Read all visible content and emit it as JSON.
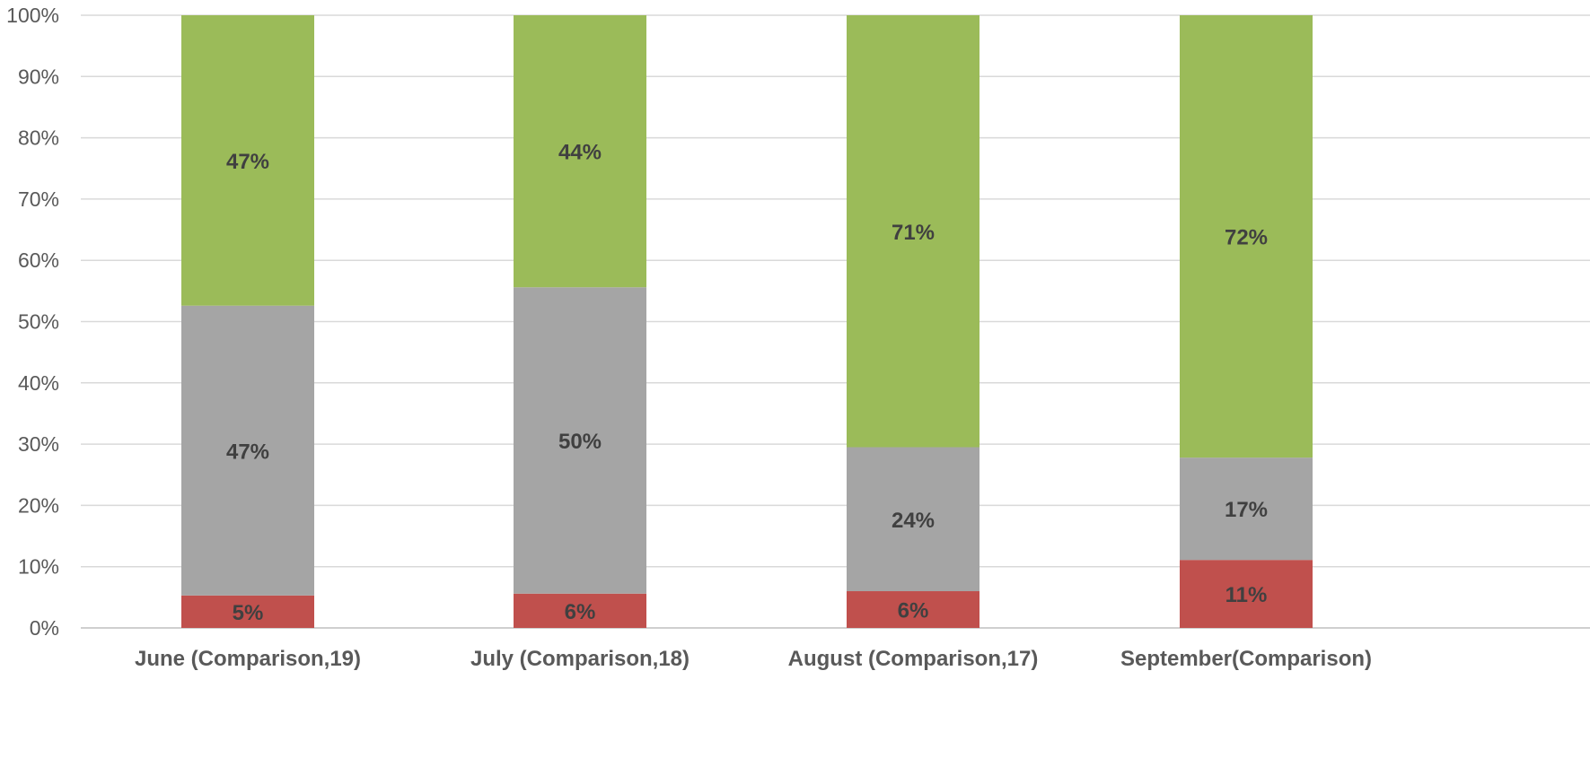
{
  "chart_data": {
    "type": "bar",
    "stacked": true,
    "percent_stacked": true,
    "categories": [
      "June (Comparison,19)",
      "July (Comparison,18)",
      "August (Comparison,17)",
      "September(Comparison)"
    ],
    "series": [
      {
        "values": [
          5.3,
          5.6,
          6.0,
          11.1
        ],
        "labels": [
          "5%",
          "6%",
          "6%",
          "11%"
        ],
        "color": "#c0504d"
      },
      {
        "values": [
          47.3,
          50.0,
          23.5,
          16.7
        ],
        "labels": [
          "47%",
          "50%",
          "24%",
          "17%"
        ],
        "color": "#a5a5a5"
      },
      {
        "values": [
          47.4,
          44.4,
          70.5,
          72.2
        ],
        "labels": [
          "47%",
          "44%",
          "71%",
          "72%"
        ],
        "color": "#9bbb59"
      }
    ],
    "y_ticks": [
      "0%",
      "10%",
      "20%",
      "30%",
      "40%",
      "50%",
      "60%",
      "70%",
      "80%",
      "90%",
      "100%"
    ],
    "ylim": [
      0,
      100
    ],
    "grid": true,
    "legend": "none"
  }
}
